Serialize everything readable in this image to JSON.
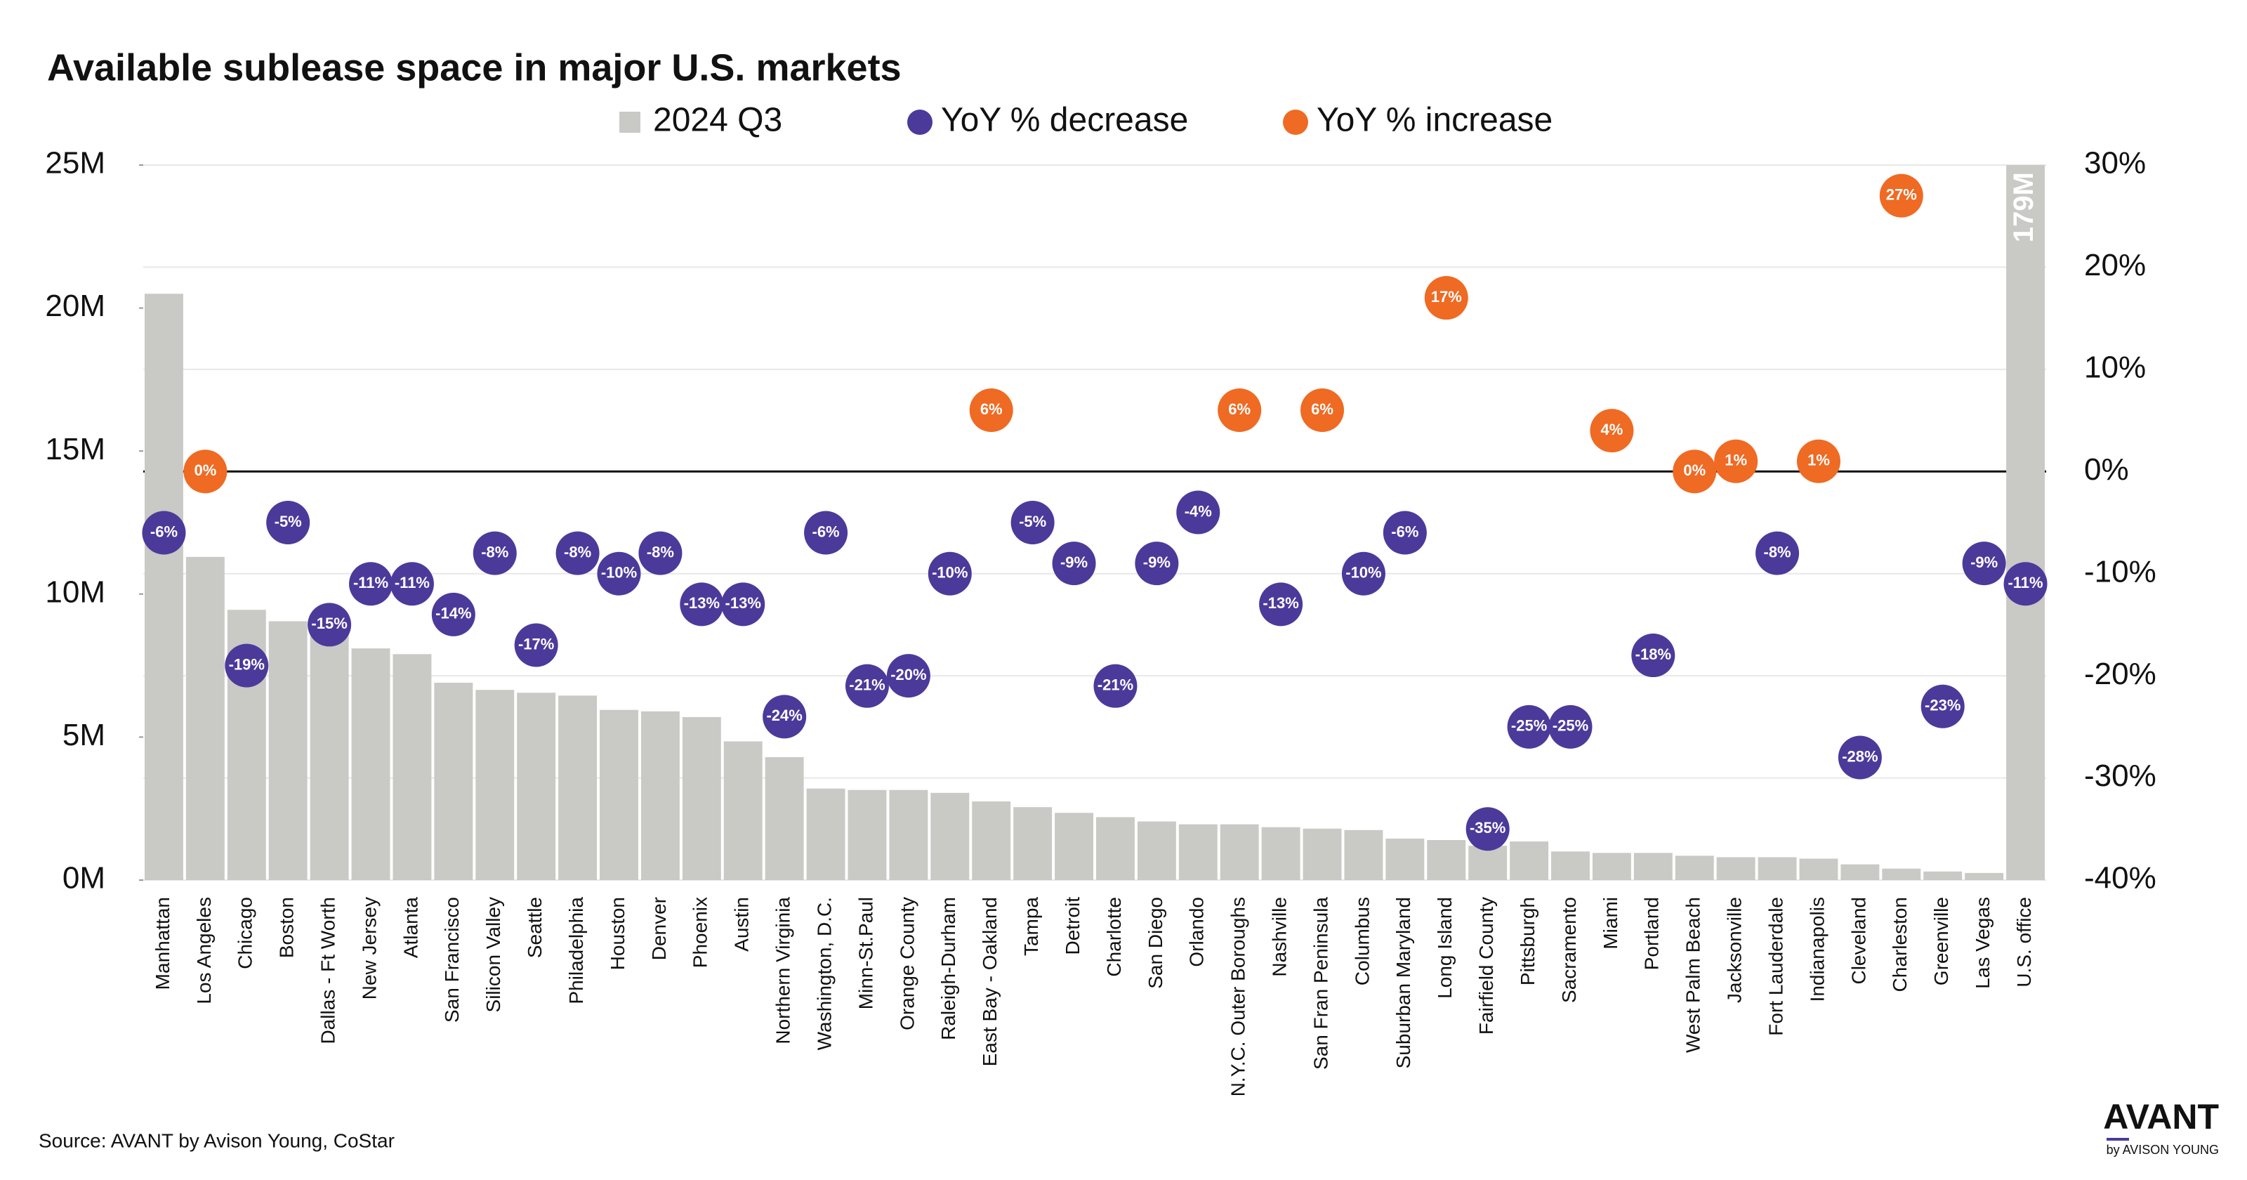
{
  "chart_data": {
    "type": "bar",
    "title": "Available sublease space in major U.S. markets",
    "source": "Source: AVANT by Avison Young, CoStar",
    "logo": "AVANT",
    "logo_subtitle": "by AVISON YOUNG",
    "categories": [
      "Manhattan",
      "Los Angeles",
      "Chicago",
      "Boston",
      "Dallas - Ft Worth",
      "New Jersey",
      "Atlanta",
      "San Francisco",
      "Silicon Valley",
      "Seattle",
      "Philadelphia",
      "Houston",
      "Denver",
      "Phoenix",
      "Austin",
      "Northern Virginia",
      "Washington, D.C.",
      "Minn-St.Paul",
      "Orange County",
      "Raleigh-Durham",
      "East Bay - Oakland",
      "Tampa",
      "Detroit",
      "Charlotte",
      "San Diego",
      "Orlando",
      "N.Y.C. Outer Boroughs",
      "Nashville",
      "San Fran Peninsula",
      "Columbus",
      "Suburban Maryland",
      "Long Island",
      "Fairfield County",
      "Pittsburgh",
      "Sacramento",
      "Miami",
      "Portland",
      "West Palm Beach",
      "Jacksonville",
      "Fort Lauderdale",
      "Indianapolis",
      "Cleveland",
      "Charleston",
      "Greenville",
      "Las Vegas",
      "U.S. office"
    ],
    "series": [
      {
        "name": "2024 Q3",
        "color": "#c9c9c5",
        "values": [
          20.5,
          11.3,
          9.45,
          9.05,
          8.85,
          8.1,
          7.9,
          6.9,
          6.65,
          6.55,
          6.45,
          5.95,
          5.9,
          5.7,
          4.85,
          4.3,
          3.2,
          3.15,
          3.15,
          3.05,
          2.75,
          2.55,
          2.35,
          2.2,
          2.05,
          1.95,
          1.95,
          1.85,
          1.8,
          1.75,
          1.45,
          1.4,
          1.2,
          1.35,
          1.0,
          0.95,
          0.95,
          0.85,
          0.8,
          0.8,
          0.75,
          0.55,
          0.4,
          0.3,
          0.25,
          179
        ],
        "value_labels": [
          null,
          null,
          null,
          null,
          null,
          null,
          null,
          null,
          null,
          null,
          null,
          null,
          null,
          null,
          null,
          null,
          null,
          null,
          null,
          null,
          null,
          null,
          null,
          null,
          null,
          null,
          null,
          null,
          null,
          null,
          null,
          null,
          null,
          null,
          null,
          null,
          null,
          null,
          null,
          null,
          null,
          null,
          null,
          null,
          null,
          "179M"
        ]
      },
      {
        "name": "YoY % decrease",
        "color": "#4b3a9a",
        "axis": "y2",
        "values": [
          -6,
          null,
          -19,
          -5,
          -15,
          -11,
          -11,
          -14,
          -8,
          -17,
          -8,
          -10,
          -8,
          -13,
          -13,
          -24,
          -6,
          -21,
          -20,
          -10,
          null,
          -5,
          -9,
          -21,
          -9,
          -4,
          null,
          -13,
          null,
          -10,
          -6,
          null,
          -35,
          -25,
          -25,
          null,
          -18,
          null,
          null,
          -8,
          null,
          -28,
          null,
          -23,
          -9,
          -11
        ],
        "value_labels": [
          "-6%",
          null,
          "-19%",
          "-5%",
          "-15%",
          "-11%",
          "-11%",
          "-14%",
          "-8%",
          "-17%",
          "-8%",
          "-10%",
          "-8%",
          "-13%",
          "-13%",
          "-24%",
          "-6%",
          "-21%",
          "-20%",
          "-10%",
          null,
          "-5%",
          "-9%",
          "-21%",
          "-9%",
          "-4%",
          null,
          "-13%",
          null,
          "-10%",
          "-6%",
          null,
          "-35%",
          "-25%",
          "-25%",
          null,
          "-18%",
          null,
          null,
          "-8%",
          null,
          "-28%",
          null,
          "-23%",
          "-9%",
          "-11%"
        ]
      },
      {
        "name": "YoY % increase",
        "color": "#ef6a23",
        "axis": "y2",
        "values": [
          null,
          0,
          null,
          null,
          null,
          null,
          null,
          null,
          null,
          null,
          null,
          null,
          null,
          null,
          null,
          null,
          null,
          null,
          null,
          null,
          6,
          null,
          null,
          null,
          null,
          null,
          6,
          null,
          6,
          null,
          null,
          17,
          null,
          null,
          null,
          4,
          null,
          0,
          1,
          null,
          1,
          null,
          27,
          null,
          null,
          null
        ],
        "value_labels": [
          null,
          "0%",
          null,
          null,
          null,
          null,
          null,
          null,
          null,
          null,
          null,
          null,
          null,
          null,
          null,
          null,
          null,
          null,
          null,
          null,
          "6%",
          null,
          null,
          null,
          null,
          null,
          "6%",
          null,
          "6%",
          null,
          null,
          "17%",
          null,
          null,
          null,
          "4%",
          null,
          "0%",
          "1%",
          null,
          "1%",
          null,
          "27%",
          null,
          null,
          null
        ]
      }
    ],
    "ylim": [
      0,
      25
    ],
    "yticks": [
      {
        "value": 0,
        "label": "0M"
      },
      {
        "value": 5,
        "label": "5M"
      },
      {
        "value": 10,
        "label": "10M"
      },
      {
        "value": 15,
        "label": "15M"
      },
      {
        "value": 20,
        "label": "20M"
      },
      {
        "value": 25,
        "label": "25M"
      }
    ],
    "y2lim": [
      -40,
      30
    ],
    "y2ticks": [
      {
        "value": -40,
        "label": "-40%"
      },
      {
        "value": -30,
        "label": "-30%"
      },
      {
        "value": -20,
        "label": "-20%"
      },
      {
        "value": -10,
        "label": "-10%"
      },
      {
        "value": 0,
        "label": "0%"
      },
      {
        "value": 10,
        "label": "10%"
      },
      {
        "value": 20,
        "label": "20%"
      },
      {
        "value": 30,
        "label": "30%"
      }
    ],
    "grid": true
  }
}
